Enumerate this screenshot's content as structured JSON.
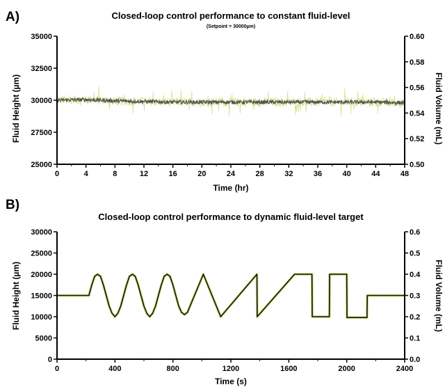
{
  "chart_data": [
    {
      "panel_label": "A)",
      "type": "line",
      "title": "Closed-loop control performance to constant fluid-level",
      "subtitle": "(Setpoint = 30000µm)",
      "xlabel": "Time (hr)",
      "ylabel": "Fluid Height (µm)",
      "y2label": "Fluid Volume (mL)",
      "xlim": [
        0,
        48
      ],
      "ylim": [
        25000,
        35000
      ],
      "y2lim": [
        0.5,
        0.6
      ],
      "xticks": [
        "0",
        "4",
        "8",
        "12",
        "16",
        "20",
        "24",
        "28",
        "32",
        "36",
        "40",
        "44",
        "48"
      ],
      "yticks": [
        "25000",
        "27500",
        "30000",
        "32500",
        "35000"
      ],
      "y2ticks": [
        "0.50",
        "0.52",
        "0.54",
        "0.56",
        "0.58",
        "0.60"
      ],
      "grid": false,
      "series": [
        {
          "color": "#d6e08a",
          "x": [
            0,
            4,
            8,
            12,
            16,
            20,
            24,
            28,
            32,
            36,
            40,
            44,
            48
          ],
          "values": [
            30000,
            30050,
            29950,
            29900,
            29850,
            29850,
            29850,
            29850,
            29850,
            29850,
            29850,
            29850,
            29800
          ],
          "noise_band": 350
        },
        {
          "color": "#555555",
          "x": [
            0,
            4,
            8,
            12,
            16,
            20,
            24,
            28,
            32,
            36,
            40,
            44,
            48
          ],
          "values": [
            30000,
            30050,
            29950,
            29900,
            29850,
            29850,
            29850,
            29850,
            29850,
            29850,
            29850,
            29850,
            29800
          ],
          "noise_band": 150
        }
      ]
    },
    {
      "panel_label": "B)",
      "type": "line",
      "title": "Closed-loop control performance to dynamic fluid-level target",
      "xlabel": "Time (s)",
      "ylabel": "Fluid Height (µm)",
      "y2label": "Fluid Volume (mL)",
      "xlim": [
        0,
        2400
      ],
      "ylim": [
        0,
        30000
      ],
      "y2lim": [
        0,
        0.6
      ],
      "xticks": [
        "0",
        "400",
        "800",
        "1200",
        "1600",
        "2000",
        "2400"
      ],
      "yticks": [
        "0",
        "5000",
        "10000",
        "15000",
        "20000",
        "25000",
        "30000"
      ],
      "y2ticks": [
        "0.0",
        "0.1",
        "0.2",
        "0.3",
        "0.4",
        "0.5",
        "0.6"
      ],
      "grid": false,
      "series": [
        {
          "color": "#d6e08a",
          "x": [
            0,
            220,
            240,
            260,
            280,
            300,
            320,
            340,
            360,
            380,
            400,
            420,
            440,
            460,
            480,
            500,
            520,
            540,
            560,
            580,
            600,
            620,
            640,
            660,
            680,
            700,
            720,
            740,
            760,
            780,
            800,
            820,
            840,
            860,
            880,
            900,
            1010,
            1130,
            1380,
            1382,
            1640,
            1760,
            1762,
            1880,
            1882,
            2000,
            2002,
            2140,
            2142,
            2400
          ],
          "values": [
            15000,
            15000,
            17500,
            19500,
            20000,
            19500,
            17500,
            15000,
            12500,
            10800,
            10000,
            10800,
            12500,
            15000,
            17500,
            19500,
            20000,
            19500,
            17500,
            15000,
            12500,
            10800,
            10000,
            10800,
            12500,
            15000,
            17500,
            19500,
            20000,
            19500,
            17500,
            15000,
            12500,
            11000,
            10500,
            11000,
            20000,
            10000,
            20000,
            10000,
            20000,
            20000,
            10000,
            10000,
            20000,
            20000,
            9800,
            9800,
            15000,
            15000
          ]
        },
        {
          "color": "#111111",
          "x": [
            0,
            220,
            240,
            260,
            280,
            300,
            320,
            340,
            360,
            380,
            400,
            420,
            440,
            460,
            480,
            500,
            520,
            540,
            560,
            580,
            600,
            620,
            640,
            660,
            680,
            700,
            720,
            740,
            760,
            780,
            800,
            820,
            840,
            860,
            880,
            900,
            1010,
            1130,
            1380,
            1382,
            1640,
            1760,
            1762,
            1880,
            1882,
            2000,
            2002,
            2140,
            2142,
            2400
          ],
          "values": [
            15000,
            15000,
            17500,
            19500,
            20000,
            19500,
            17500,
            15000,
            12500,
            10800,
            10000,
            10800,
            12500,
            15000,
            17500,
            19500,
            20000,
            19500,
            17500,
            15000,
            12500,
            10800,
            10000,
            10800,
            12500,
            15000,
            17500,
            19500,
            20000,
            19500,
            17500,
            15000,
            12500,
            11000,
            10500,
            11000,
            20000,
            10000,
            20000,
            10000,
            20000,
            20000,
            10000,
            10000,
            20000,
            20000,
            9800,
            9800,
            15000,
            15000
          ]
        }
      ]
    }
  ]
}
